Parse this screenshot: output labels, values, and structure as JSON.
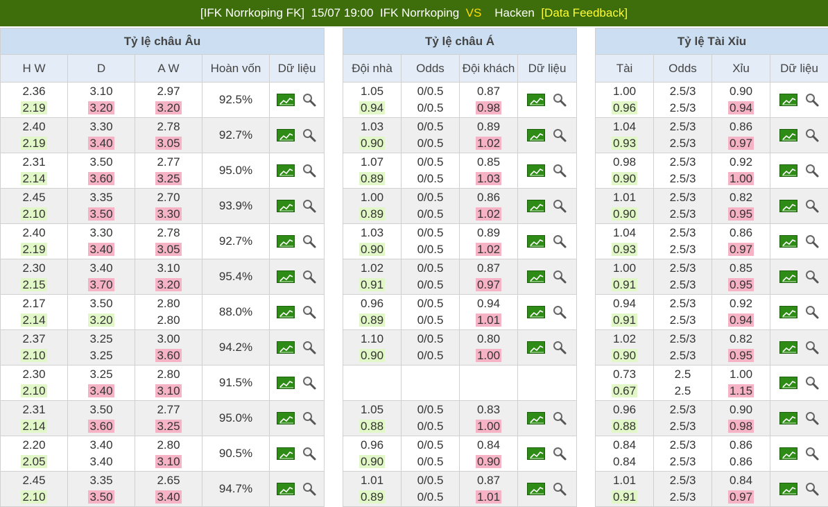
{
  "header": {
    "team_tag": "[IFK Norrkoping FK]",
    "datetime": "15/07 19:00",
    "home": "IFK Norrkoping",
    "vs": "VS",
    "away": "Hacken",
    "feedback": "[Data Feedback]"
  },
  "sections": {
    "eu": "Tỷ lệ châu Âu",
    "asia": "Tỷ lệ châu Á",
    "ou": "Tỷ lệ Tài Xỉu"
  },
  "columns": {
    "eu": [
      "H W",
      "D",
      "A W",
      "Hoàn vốn",
      "Dữ liệu"
    ],
    "asia": [
      "Đội nhà",
      "Odds",
      "Đội khách",
      "Dữ liệu"
    ],
    "ou": [
      "Tài",
      "Odds",
      "Xỉu",
      "Dữ liệu"
    ]
  },
  "colors": {
    "topbar": "#3e6e0b",
    "up": "#e2f7c7",
    "down": "#f7b3c6",
    "section_bg": "#ccdff2"
  },
  "rows": [
    {
      "eu": [
        [
          "2.36",
          "2.19",
          "up"
        ],
        [
          "3.10",
          "3.20",
          "down"
        ],
        [
          "2.97",
          "3.20",
          "down"
        ]
      ],
      "ret": "92.5%",
      "asia": [
        [
          "1.05",
          "0.94",
          "up"
        ],
        [
          "0/0.5",
          "0/0.5",
          ""
        ],
        [
          "0.87",
          "0.98",
          "down"
        ]
      ],
      "ou": [
        [
          "1.00",
          "0.96",
          "up"
        ],
        [
          "2.5/3",
          "2.5/3",
          ""
        ],
        [
          "0.90",
          "0.94",
          "down"
        ]
      ]
    },
    {
      "eu": [
        [
          "2.40",
          "2.19",
          "up"
        ],
        [
          "3.30",
          "3.40",
          "down"
        ],
        [
          "2.78",
          "3.05",
          "down"
        ]
      ],
      "ret": "92.7%",
      "asia": [
        [
          "1.03",
          "0.90",
          "up"
        ],
        [
          "0/0.5",
          "0/0.5",
          ""
        ],
        [
          "0.89",
          "1.02",
          "down"
        ]
      ],
      "ou": [
        [
          "1.04",
          "0.93",
          "up"
        ],
        [
          "2.5/3",
          "2.5/3",
          ""
        ],
        [
          "0.86",
          "0.97",
          "down"
        ]
      ]
    },
    {
      "eu": [
        [
          "2.31",
          "2.14",
          "up"
        ],
        [
          "3.50",
          "3.60",
          "down"
        ],
        [
          "2.77",
          "3.25",
          "down"
        ]
      ],
      "ret": "95.0%",
      "asia": [
        [
          "1.07",
          "0.89",
          "up"
        ],
        [
          "0/0.5",
          "0/0.5",
          ""
        ],
        [
          "0.85",
          "1.03",
          "down"
        ]
      ],
      "ou": [
        [
          "0.98",
          "0.90",
          "up"
        ],
        [
          "2.5/3",
          "2.5/3",
          ""
        ],
        [
          "0.92",
          "1.00",
          "down"
        ]
      ]
    },
    {
      "eu": [
        [
          "2.45",
          "2.10",
          "up"
        ],
        [
          "3.35",
          "3.50",
          "down"
        ],
        [
          "2.70",
          "3.30",
          "down"
        ]
      ],
      "ret": "93.9%",
      "asia": [
        [
          "1.00",
          "0.89",
          "up"
        ],
        [
          "0/0.5",
          "0/0.5",
          ""
        ],
        [
          "0.86",
          "1.02",
          "down"
        ]
      ],
      "ou": [
        [
          "1.01",
          "0.90",
          "up"
        ],
        [
          "2.5/3",
          "2.5/3",
          ""
        ],
        [
          "0.82",
          "0.95",
          "down"
        ]
      ]
    },
    {
      "eu": [
        [
          "2.40",
          "2.19",
          "up"
        ],
        [
          "3.30",
          "3.40",
          "down"
        ],
        [
          "2.78",
          "3.05",
          "down"
        ]
      ],
      "ret": "92.7%",
      "asia": [
        [
          "1.03",
          "0.90",
          "up"
        ],
        [
          "0/0.5",
          "0/0.5",
          ""
        ],
        [
          "0.89",
          "1.02",
          "down"
        ]
      ],
      "ou": [
        [
          "1.04",
          "0.93",
          "up"
        ],
        [
          "2.5/3",
          "2.5/3",
          ""
        ],
        [
          "0.86",
          "0.97",
          "down"
        ]
      ]
    },
    {
      "eu": [
        [
          "2.30",
          "2.15",
          "up"
        ],
        [
          "3.40",
          "3.70",
          "down"
        ],
        [
          "3.10",
          "3.20",
          "down"
        ]
      ],
      "ret": "95.4%",
      "asia": [
        [
          "1.02",
          "0.91",
          "up"
        ],
        [
          "0/0.5",
          "0/0.5",
          ""
        ],
        [
          "0.87",
          "0.97",
          "down"
        ]
      ],
      "ou": [
        [
          "1.00",
          "0.91",
          "up"
        ],
        [
          "2.5/3",
          "2.5/3",
          ""
        ],
        [
          "0.85",
          "0.95",
          "down"
        ]
      ]
    },
    {
      "eu": [
        [
          "2.17",
          "2.14",
          "up"
        ],
        [
          "3.50",
          "3.20",
          "up"
        ],
        [
          "2.80",
          "2.80",
          ""
        ]
      ],
      "ret": "88.0%",
      "asia": [
        [
          "0.96",
          "0.89",
          "up"
        ],
        [
          "0/0.5",
          "0/0.5",
          ""
        ],
        [
          "0.94",
          "1.01",
          "down"
        ]
      ],
      "ou": [
        [
          "0.94",
          "0.91",
          "up"
        ],
        [
          "2.5/3",
          "2.5/3",
          ""
        ],
        [
          "0.92",
          "0.94",
          "down"
        ]
      ]
    },
    {
      "eu": [
        [
          "2.37",
          "2.10",
          "up"
        ],
        [
          "3.25",
          "3.25",
          ""
        ],
        [
          "3.00",
          "3.60",
          "down"
        ]
      ],
      "ret": "94.2%",
      "asia": [
        [
          "1.10",
          "0.90",
          "up"
        ],
        [
          "0/0.5",
          "0/0.5",
          ""
        ],
        [
          "0.80",
          "1.00",
          "down"
        ]
      ],
      "ou": [
        [
          "1.02",
          "0.90",
          "up"
        ],
        [
          "2.5/3",
          "2.5/3",
          ""
        ],
        [
          "0.82",
          "0.95",
          "down"
        ]
      ]
    },
    {
      "eu": [
        [
          "2.30",
          "2.10",
          "up"
        ],
        [
          "3.25",
          "3.40",
          "down"
        ],
        [
          "2.80",
          "3.10",
          "down"
        ]
      ],
      "ret": "91.5%",
      "asia": null,
      "ou": [
        [
          "0.73",
          "0.67",
          "up"
        ],
        [
          "2.5",
          "2.5",
          ""
        ],
        [
          "1.00",
          "1.15",
          "down"
        ]
      ]
    },
    {
      "eu": [
        [
          "2.31",
          "2.14",
          "up"
        ],
        [
          "3.50",
          "3.60",
          "down"
        ],
        [
          "2.77",
          "3.25",
          "down"
        ]
      ],
      "ret": "95.0%",
      "asia": [
        [
          "1.05",
          "0.88",
          "up"
        ],
        [
          "0/0.5",
          "0/0.5",
          ""
        ],
        [
          "0.83",
          "1.00",
          "down"
        ]
      ],
      "ou": [
        [
          "0.96",
          "0.88",
          "up"
        ],
        [
          "2.5/3",
          "2.5/3",
          ""
        ],
        [
          "0.90",
          "0.98",
          "down"
        ]
      ]
    },
    {
      "eu": [
        [
          "2.20",
          "2.05",
          "up"
        ],
        [
          "3.40",
          "3.40",
          ""
        ],
        [
          "2.80",
          "3.10",
          "down"
        ]
      ],
      "ret": "90.5%",
      "asia": [
        [
          "0.96",
          "0.90",
          "up"
        ],
        [
          "0/0.5",
          "0/0.5",
          ""
        ],
        [
          "0.84",
          "0.90",
          "down"
        ]
      ],
      "ou": [
        [
          "0.84",
          "0.84",
          ""
        ],
        [
          "2.5/3",
          "2.5/3",
          ""
        ],
        [
          "0.86",
          "0.86",
          ""
        ]
      ]
    },
    {
      "eu": [
        [
          "2.45",
          "2.10",
          "up"
        ],
        [
          "3.35",
          "3.50",
          "down"
        ],
        [
          "2.65",
          "3.40",
          "down"
        ]
      ],
      "ret": "94.7%",
      "asia": [
        [
          "1.01",
          "0.89",
          "up"
        ],
        [
          "0/0.5",
          "0/0.5",
          ""
        ],
        [
          "0.87",
          "1.01",
          "down"
        ]
      ],
      "ou": [
        [
          "1.01",
          "0.91",
          "up"
        ],
        [
          "2.5/3",
          "2.5/3",
          ""
        ],
        [
          "0.84",
          "0.97",
          "down"
        ]
      ]
    }
  ]
}
